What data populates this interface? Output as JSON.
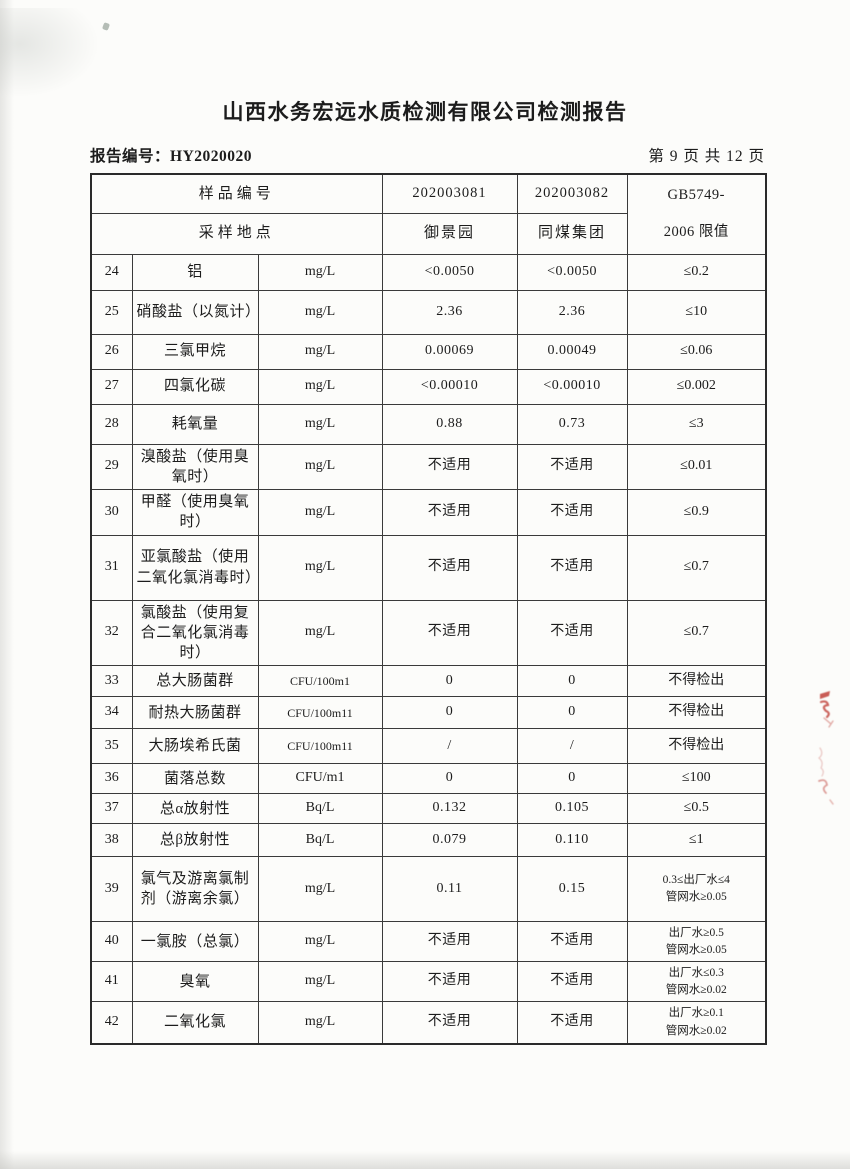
{
  "page": {
    "title": "山西水务宏远水质检测有限公司检测报告",
    "report_no_label": "报告编号：",
    "report_no": "HY2020020",
    "page_indicator": "第 9 页 共 12 页"
  },
  "table": {
    "header": {
      "row1_label": "样品编号",
      "sample1": "202003081",
      "sample2": "202003082",
      "limit_line1": "GB5749-",
      "limit_line2": "2006 限值",
      "row2_label": "采样地点",
      "location1": "御景园",
      "location2": "同煤集团"
    },
    "rows": [
      {
        "no": "24",
        "name": "铝",
        "unit": "mg/L",
        "v1": "<0.0050",
        "v2": "<0.0050",
        "limit": "≤0.2"
      },
      {
        "no": "25",
        "name": "硝酸盐（以氮计）",
        "unit": "mg/L",
        "v1": "2.36",
        "v2": "2.36",
        "limit": "≤10"
      },
      {
        "no": "26",
        "name": "三氯甲烷",
        "unit": "mg/L",
        "v1": "0.00069",
        "v2": "0.00049",
        "limit": "≤0.06"
      },
      {
        "no": "27",
        "name": "四氯化碳",
        "unit": "mg/L",
        "v1": "<0.00010",
        "v2": "<0.00010",
        "limit": "≤0.002"
      },
      {
        "no": "28",
        "name": "耗氧量",
        "unit": "mg/L",
        "v1": "0.88",
        "v2": "0.73",
        "limit": "≤3"
      },
      {
        "no": "29",
        "name": "溴酸盐（使用臭氧时）",
        "unit": "mg/L",
        "v1": "不适用",
        "v2": "不适用",
        "limit": "≤0.01"
      },
      {
        "no": "30",
        "name": "甲醛（使用臭氧时）",
        "unit": "mg/L",
        "v1": "不适用",
        "v2": "不适用",
        "limit": "≤0.9"
      },
      {
        "no": "31",
        "name": "亚氯酸盐（使用二氧化氯消毒时）",
        "unit": "mg/L",
        "v1": "不适用",
        "v2": "不适用",
        "limit": "≤0.7"
      },
      {
        "no": "32",
        "name": "氯酸盐（使用复合二氧化氯消毒时）",
        "unit": "mg/L",
        "v1": "不适用",
        "v2": "不适用",
        "limit": "≤0.7"
      },
      {
        "no": "33",
        "name": "总大肠菌群",
        "unit": "CFU/100m1",
        "v1": "0",
        "v2": "0",
        "limit": "不得检出"
      },
      {
        "no": "34",
        "name": "耐热大肠菌群",
        "unit": "CFU/100m11",
        "v1": "0",
        "v2": "0",
        "limit": "不得检出"
      },
      {
        "no": "35",
        "name": "大肠埃希氏菌",
        "unit": "CFU/100m11",
        "v1": "/",
        "v2": "/",
        "limit": "不得检出"
      },
      {
        "no": "36",
        "name": "菌落总数",
        "unit": "CFU/m1",
        "v1": "0",
        "v2": "0",
        "limit": "≤100"
      },
      {
        "no": "37",
        "name": "总α放射性",
        "unit": "Bq/L",
        "v1": "0.132",
        "v2": "0.105",
        "limit": "≤0.5"
      },
      {
        "no": "38",
        "name": "总β放射性",
        "unit": "Bq/L",
        "v1": "0.079",
        "v2": "0.110",
        "limit": "≤1"
      },
      {
        "no": "39",
        "name": "氯气及游离氯制剂（游离余氯）",
        "unit": "mg/L",
        "v1": "0.11",
        "v2": "0.15",
        "limit": [
          "0.3≤出厂水≤4",
          "管网水≥0.05"
        ]
      },
      {
        "no": "40",
        "name": "一氯胺（总氯）",
        "unit": "mg/L",
        "v1": "不适用",
        "v2": "不适用",
        "limit": [
          "出厂水≥0.5",
          "管网水≥0.05"
        ]
      },
      {
        "no": "41",
        "name": "臭氧",
        "unit": "mg/L",
        "v1": "不适用",
        "v2": "不适用",
        "limit": [
          "出厂水≤0.3",
          "管网水≥0.02"
        ]
      },
      {
        "no": "42",
        "name": "二氧化氯",
        "unit": "mg/L",
        "v1": "不适用",
        "v2": "不适用",
        "limit": [
          "出厂水≥0.1",
          "管网水≥0.02"
        ]
      }
    ]
  },
  "artifacts": {
    "red_ink_mark_color": "#bf4038"
  }
}
